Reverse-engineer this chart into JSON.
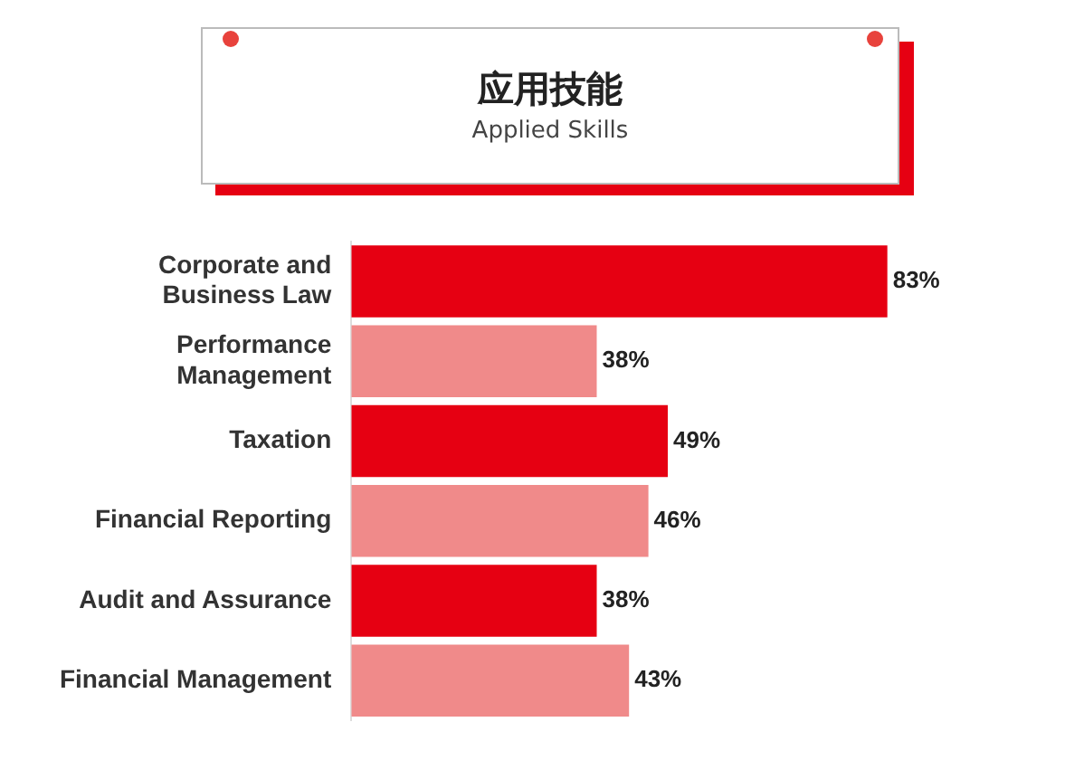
{
  "chart_data": {
    "type": "bar",
    "orientation": "horizontal",
    "title": "应用技能",
    "subtitle": "Applied Skills",
    "categories": [
      "Corporate and Business Law",
      "Performance Management",
      "Taxation",
      "Financial Reporting",
      "Audit and Assurance",
      "Financial Management"
    ],
    "values": [
      83,
      38,
      49,
      46,
      38,
      43
    ],
    "colors": [
      "#e60012",
      "#f08a8a",
      "#e60012",
      "#f08a8a",
      "#e60012",
      "#f08a8a"
    ],
    "value_labels": [
      "83%",
      "38%",
      "49%",
      "46%",
      "38%",
      "43%"
    ],
    "legend": false
  }
}
